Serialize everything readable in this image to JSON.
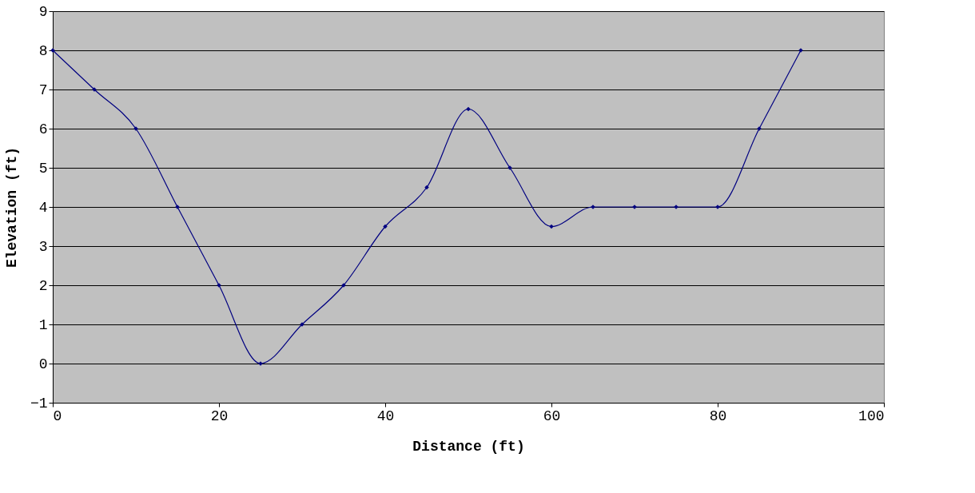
{
  "chart_data": {
    "type": "line",
    "xlabel": "Distance (ft)",
    "ylabel": "Elevation (ft)",
    "x": [
      0,
      5,
      10,
      15,
      20,
      25,
      30,
      35,
      40,
      45,
      50,
      55,
      60,
      65,
      70,
      75,
      80,
      85,
      90
    ],
    "series": [
      {
        "color": "#000080",
        "values": [
          8,
          7,
          6,
          4,
          2,
          0,
          1,
          2,
          3.5,
          4.5,
          6.5,
          5,
          3.5,
          4,
          4,
          4,
          4,
          6,
          8
        ]
      }
    ],
    "xlim": [
      0,
      100
    ],
    "xticks": [
      0,
      20,
      40,
      60,
      80,
      100
    ],
    "ylim": [
      -1,
      9
    ],
    "yticks": [
      -1,
      0,
      1,
      2,
      3,
      4,
      5,
      6,
      7,
      8,
      9
    ],
    "grid": "y",
    "marker": "diamond",
    "line_style": "solid"
  }
}
